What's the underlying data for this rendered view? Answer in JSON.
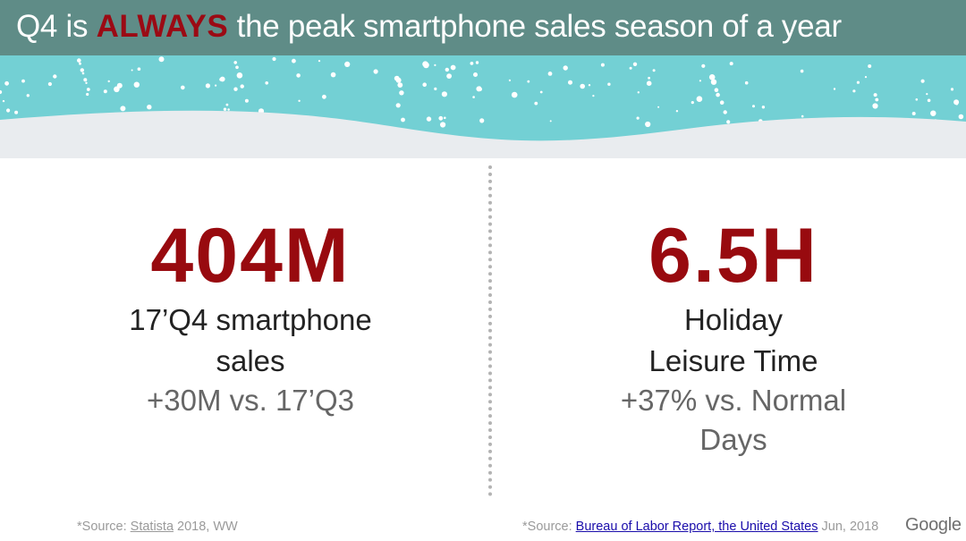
{
  "title": {
    "prefix": "Q4 is ",
    "emphasis": "ALWAYS",
    "suffix": " the peak smartphone sales season of a year"
  },
  "colors": {
    "title_bar": "#5f8c87",
    "emphasis": "#9b0a14",
    "stat_value": "#980a0f",
    "banner_sky": "#73d0d4",
    "snow": "#e9ecef",
    "link": "#1a0dab"
  },
  "stats": [
    {
      "value": "404M",
      "description": [
        "17’Q4 smartphone",
        "sales"
      ],
      "comparison": [
        "+30M vs. 17’Q3"
      ]
    },
    {
      "value": "6.5H",
      "description": [
        "Holiday",
        "Leisure Time"
      ],
      "comparison": [
        "+37% vs. Normal",
        "Days"
      ]
    }
  ],
  "sources": {
    "left": {
      "prefix": "*Source: ",
      "link": "Statista",
      "suffix": " 2018, WW"
    },
    "right": {
      "prefix": "*Source: ",
      "link": "Bureau of Labor Report, the United States",
      "suffix": " Jun, 2018"
    }
  },
  "logo": {
    "text": "Google",
    "icon": "google-logo"
  }
}
